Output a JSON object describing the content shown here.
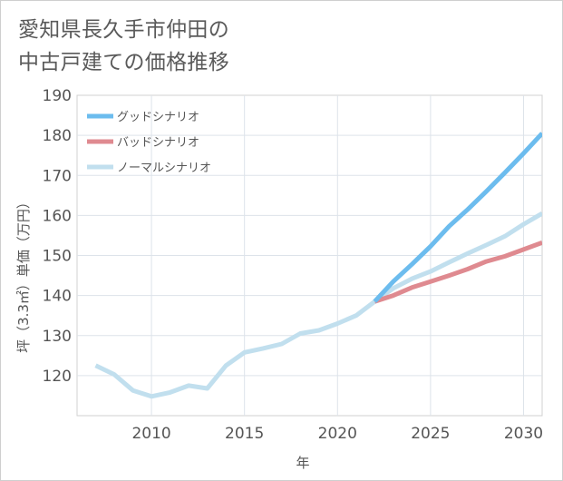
{
  "title": {
    "line1": "愛知県長久手市仲田の",
    "line2": "中古戸建ての価格推移"
  },
  "chart_data": {
    "type": "line",
    "title": "愛知県長久手市仲田の中古戸建ての価格推移",
    "xlabel": "年",
    "ylabel": "坪（3.3㎡）単価（万円）",
    "xlim": [
      2006,
      2031
    ],
    "ylim": [
      110,
      190
    ],
    "xticks": [
      2010,
      2015,
      2020,
      2025,
      2030
    ],
    "yticks": [
      120,
      130,
      140,
      150,
      160,
      170,
      180,
      190
    ],
    "legend_position": "top-left",
    "grid": true,
    "series": [
      {
        "name": "グッドシナリオ",
        "color": "#6cbcee",
        "x": [
          2022,
          2023,
          2024,
          2025,
          2026,
          2027,
          2028,
          2029,
          2030,
          2031
        ],
        "values": [
          138.5,
          143.5,
          147.8,
          152.3,
          157.3,
          161.5,
          166.0,
          170.7,
          175.5,
          180.5
        ]
      },
      {
        "name": "バッドシナリオ",
        "color": "#df8a90",
        "x": [
          2022,
          2023,
          2024,
          2025,
          2026,
          2027,
          2028,
          2029,
          2030,
          2031
        ],
        "values": [
          138.5,
          140.0,
          142.0,
          143.5,
          145.0,
          146.6,
          148.5,
          149.8,
          151.5,
          153.2
        ]
      },
      {
        "name": "ノーマルシナリオ",
        "color": "#c1dfee",
        "x": [
          2007,
          2008,
          2009,
          2010,
          2011,
          2012,
          2013,
          2014,
          2015,
          2016,
          2017,
          2018,
          2019,
          2020,
          2021,
          2022,
          2023,
          2024,
          2025,
          2026,
          2027,
          2028,
          2029,
          2030,
          2031
        ],
        "values": [
          122.5,
          120.3,
          116.3,
          114.8,
          115.8,
          117.5,
          116.8,
          122.5,
          125.8,
          126.8,
          127.9,
          130.5,
          131.3,
          133.0,
          135.0,
          138.5,
          141.8,
          144.2,
          146.0,
          148.3,
          150.5,
          152.6,
          154.8,
          157.8,
          160.5
        ]
      }
    ]
  }
}
